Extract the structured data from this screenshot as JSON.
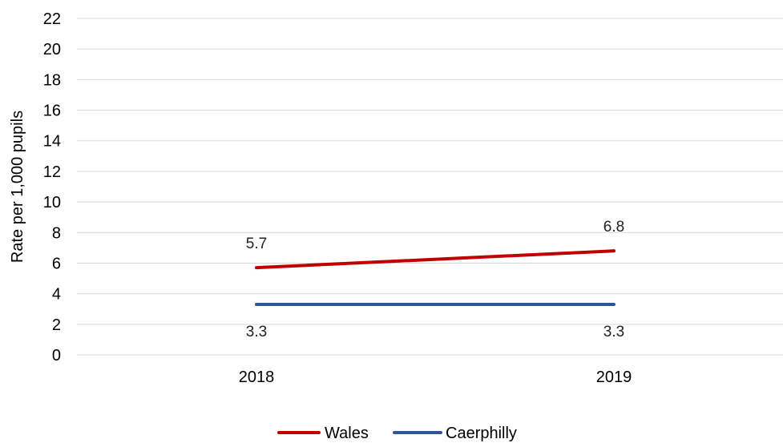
{
  "chart_data": {
    "type": "line",
    "title": "",
    "xlabel": "",
    "ylabel": "Rate per 1,000 pupils",
    "categories": [
      "2018",
      "2019"
    ],
    "ylim": [
      0,
      22
    ],
    "yticks": [
      "0",
      "2",
      "4",
      "6",
      "8",
      "10",
      "12",
      "14",
      "16",
      "18",
      "20",
      "22"
    ],
    "grid": true,
    "legend_position": "bottom",
    "series": [
      {
        "name": "Wales",
        "values": [
          5.7,
          6.8
        ],
        "labels": [
          "5.7",
          "6.8"
        ],
        "color": "#c00000"
      },
      {
        "name": "Caerphilly",
        "values": [
          3.3,
          3.3
        ],
        "labels": [
          "3.3",
          "3.3"
        ],
        "color": "#2f5597"
      }
    ]
  }
}
